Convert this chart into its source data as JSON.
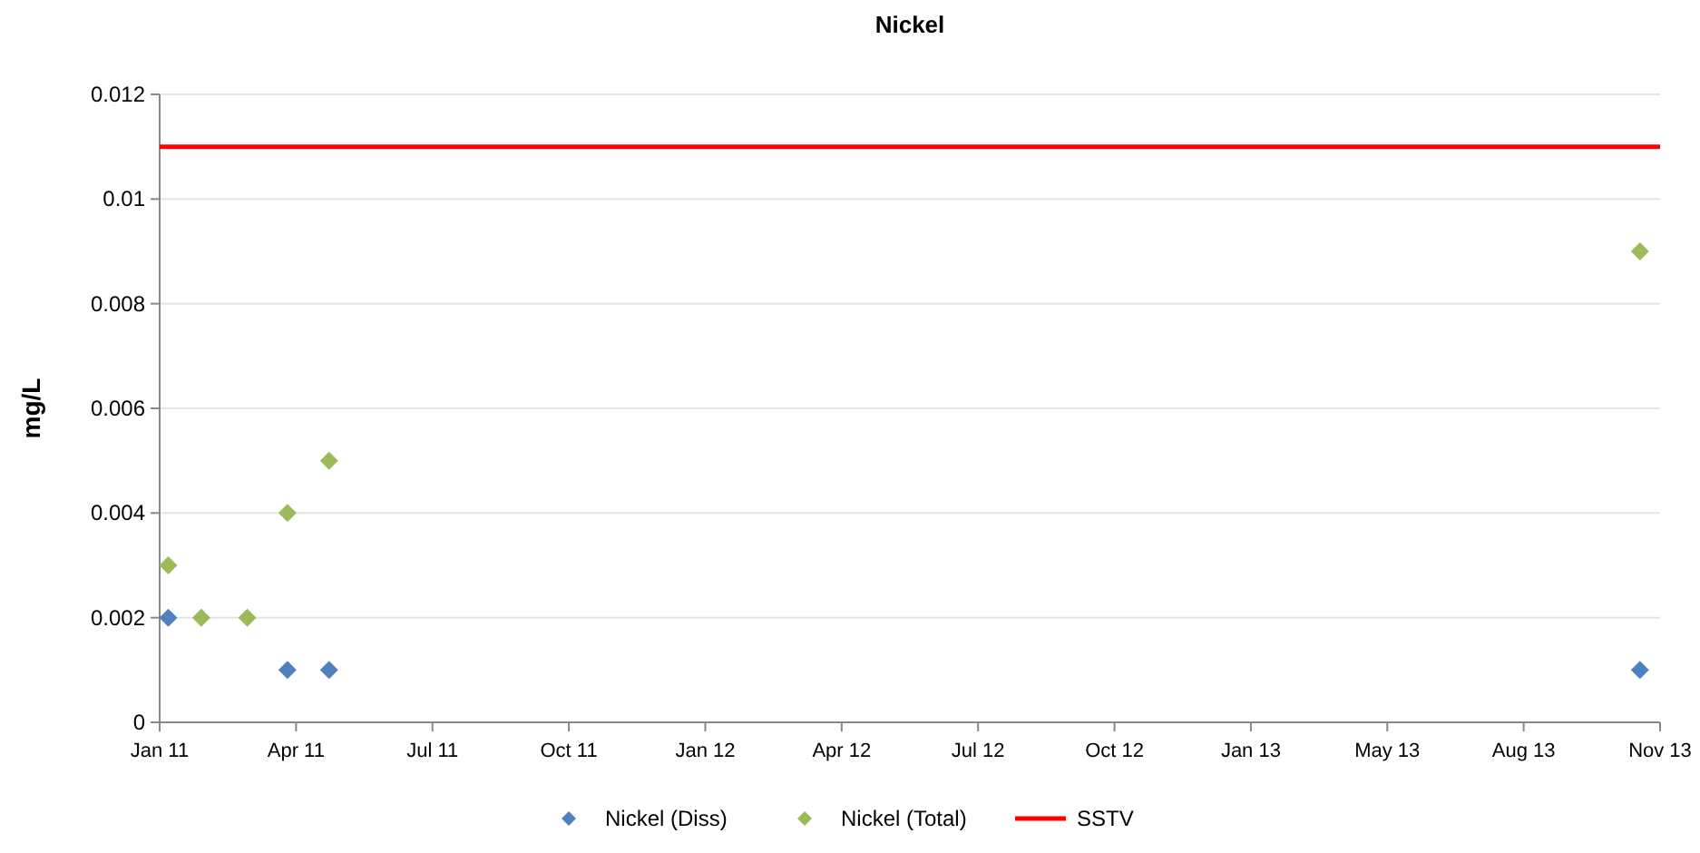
{
  "chart_data": {
    "type": "scatter",
    "title": "Nickel",
    "ylabel": "mg/L",
    "grid": "y",
    "legend": "bottom",
    "xlim": [
      "2011-01-01",
      "2013-11-11"
    ],
    "xticks": [
      {
        "value": "2011-01-01",
        "label": "Jan 11"
      },
      {
        "value": "2011-04-06",
        "label": "Apr 11"
      },
      {
        "value": "2011-07-10",
        "label": "Jul 11"
      },
      {
        "value": "2011-10-13",
        "label": "Oct 11"
      },
      {
        "value": "2012-01-16",
        "label": "Jan 12"
      },
      {
        "value": "2012-04-20",
        "label": "Apr 12"
      },
      {
        "value": "2012-07-24",
        "label": "Jul 12"
      },
      {
        "value": "2012-10-27",
        "label": "Oct 12"
      },
      {
        "value": "2013-01-30",
        "label": "Jan 13"
      },
      {
        "value": "2013-05-05",
        "label": "May 13"
      },
      {
        "value": "2013-08-08",
        "label": "Aug 13"
      },
      {
        "value": "2013-11-11",
        "label": "Nov 13"
      }
    ],
    "ylim": [
      0,
      0.012
    ],
    "yticks": [
      0,
      0.002,
      0.004,
      0.006,
      0.008,
      0.01,
      0.012
    ],
    "series": [
      {
        "name": "Nickel (Diss)",
        "marker": "diamond",
        "color": "#4f81bd",
        "x": [
          "2011-01-07",
          "2011-03-31",
          "2011-04-29",
          "2013-10-28"
        ],
        "values": [
          0.002,
          0.001,
          0.001,
          0.001
        ]
      },
      {
        "name": "Nickel (Total)",
        "marker": "diamond",
        "color": "#9bbb59",
        "x": [
          "2011-01-07",
          "2011-01-30",
          "2011-03-03",
          "2011-03-31",
          "2011-04-29",
          "2013-10-28"
        ],
        "values": [
          0.003,
          0.002,
          0.002,
          0.004,
          0.005,
          0.009
        ]
      },
      {
        "name": "SSTV",
        "type": "line",
        "marker": "none",
        "line_style": "solid",
        "color": "#ff0000",
        "x": [
          "2011-01-01",
          "2013-11-11"
        ],
        "values": [
          0.011,
          0.011
        ]
      }
    ]
  }
}
